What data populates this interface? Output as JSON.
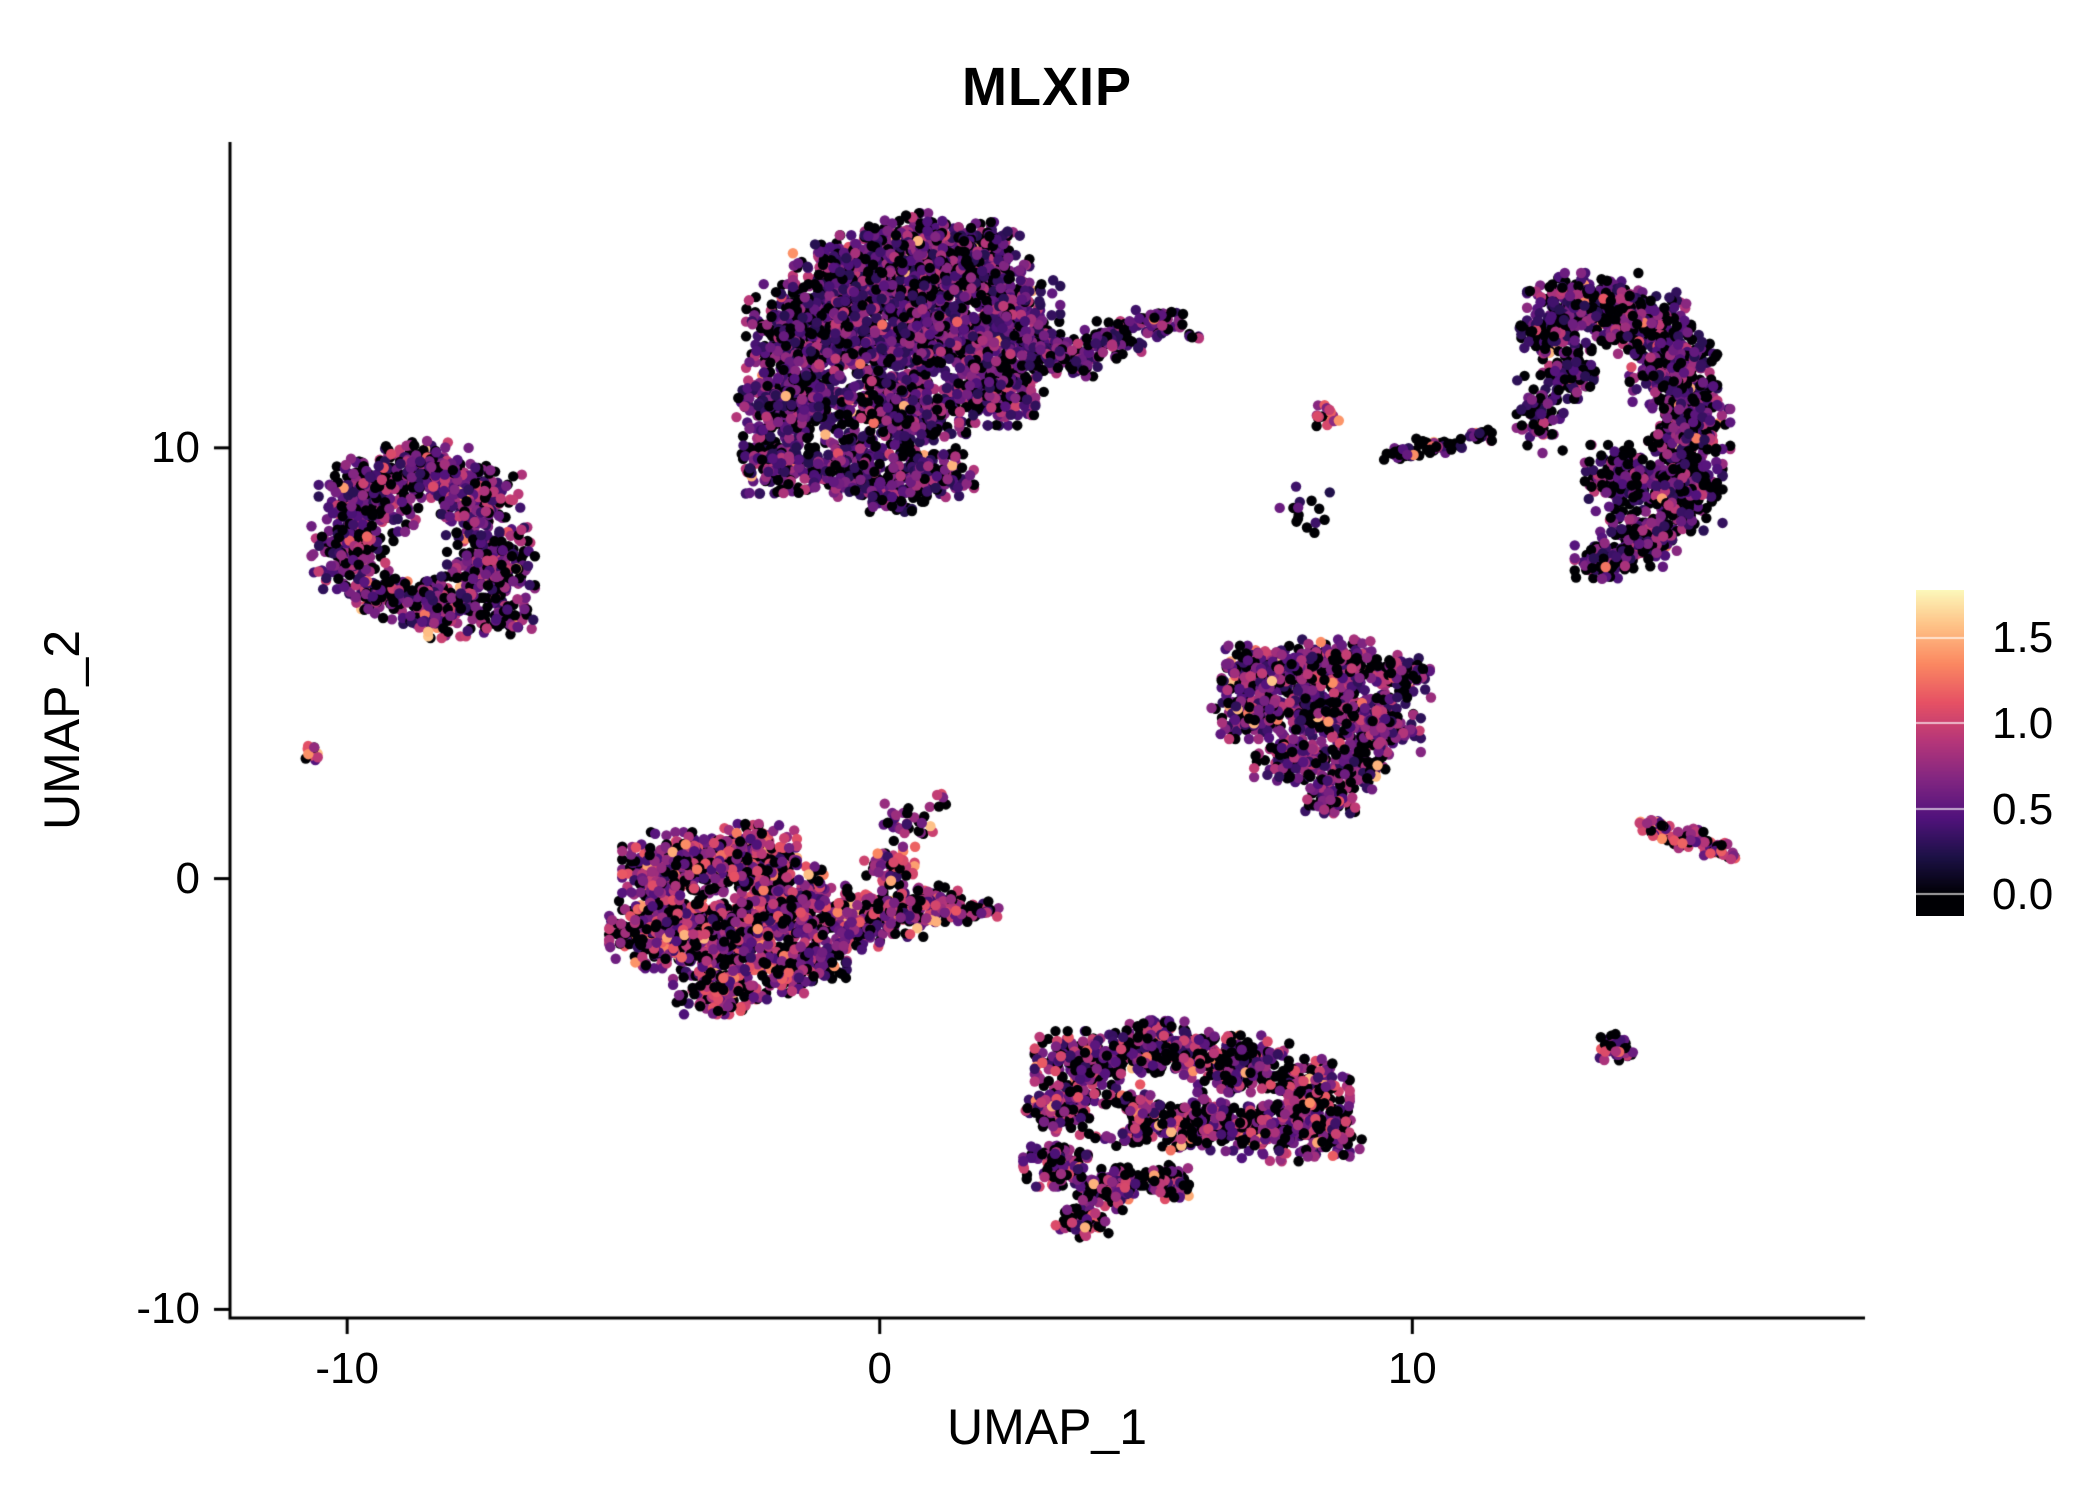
{
  "title": "MLXIP",
  "chart_data": {
    "type": "scatter",
    "title": "MLXIP",
    "xlabel": "UMAP_1",
    "ylabel": "UMAP_2",
    "grid": false,
    "background": "#ffffff",
    "x_axis": {
      "min": -12.2,
      "max": 18.5,
      "ticks": [
        -10,
        0,
        10
      ]
    },
    "y_axis": {
      "min": -10.2,
      "max": 17.1,
      "ticks": [
        -10,
        0,
        10
      ]
    },
    "legend": {
      "position": "right",
      "ticks": [
        1.5,
        1.0,
        0.5,
        0.0
      ],
      "range": [
        -0.12,
        1.78
      ],
      "colormap": "magma",
      "colormap_domain": [
        0,
        1.8
      ],
      "colors": [
        "#000004",
        "#1d1147",
        "#51127c",
        "#822681",
        "#b63679",
        "#e65164",
        "#fb8861",
        "#fec287",
        "#fcfdbf"
      ]
    },
    "point_radius_px": 5.2,
    "seed": 42,
    "clusters": [
      {
        "name": "left-ring",
        "p0": 0.33,
        "vmax": 1.0,
        "p_hi": 0.04,
        "pow": 1.25,
        "holes": [
          [
            -8.75,
            7.35,
            0.5,
            0.45
          ]
        ],
        "blobs": [
          [
            -9.6,
            8.9,
            0.85,
            0.8,
            220
          ],
          [
            -8.6,
            9.5,
            0.8,
            0.6,
            180
          ],
          [
            -7.6,
            8.8,
            0.8,
            0.75,
            200
          ],
          [
            -9.9,
            7.6,
            0.7,
            0.8,
            190
          ],
          [
            -7.3,
            7.4,
            0.75,
            0.8,
            190
          ],
          [
            -8.2,
            6.3,
            0.9,
            0.65,
            190
          ],
          [
            -9.3,
            6.6,
            0.6,
            0.5,
            100
          ],
          [
            -7.0,
            6.1,
            0.45,
            0.4,
            60
          ]
        ]
      },
      {
        "name": "left-tiny",
        "p0": 0.25,
        "vmax": 1.15,
        "p_hi": 0.12,
        "pow": 1.1,
        "blobs": [
          [
            -10.65,
            2.95,
            0.18,
            0.22,
            13
          ]
        ]
      },
      {
        "name": "top-large",
        "p0": 0.3,
        "vmax": 0.95,
        "p_hi": 0.015,
        "pow": 1.5,
        "blobs": [
          [
            0.6,
            14.9,
            0.8,
            0.5,
            140
          ],
          [
            1.9,
            14.8,
            0.6,
            0.4,
            80
          ],
          [
            -0.2,
            14.0,
            1.3,
            0.85,
            520
          ],
          [
            1.6,
            14.1,
            1.1,
            0.75,
            420
          ],
          [
            -1.3,
            12.7,
            1.1,
            1.0,
            480
          ],
          [
            0.6,
            12.6,
            1.3,
            1.1,
            560
          ],
          [
            2.4,
            12.9,
            0.9,
            0.9,
            330
          ],
          [
            -1.7,
            11.0,
            0.9,
            0.9,
            330
          ],
          [
            0.3,
            10.8,
            1.2,
            0.9,
            420
          ],
          [
            2.2,
            11.4,
            0.8,
            0.8,
            260
          ],
          [
            -2.0,
            9.6,
            0.6,
            0.6,
            140
          ],
          [
            -0.6,
            9.5,
            0.9,
            0.6,
            200
          ],
          [
            1.0,
            9.3,
            0.7,
            0.5,
            130
          ],
          [
            0.2,
            8.9,
            0.5,
            0.35,
            60
          ],
          [
            3.1,
            12.2,
            0.5,
            0.5,
            90
          ],
          [
            3.7,
            12.1,
            0.45,
            0.4,
            60
          ],
          [
            4.4,
            12.5,
            0.5,
            0.4,
            70
          ],
          [
            5.2,
            12.9,
            0.45,
            0.3,
            55
          ],
          [
            5.9,
            12.6,
            0.15,
            0.12,
            6
          ]
        ]
      },
      {
        "name": "mid-tiny-a",
        "p0": 0.25,
        "vmax": 1.35,
        "p_hi": 0.15,
        "pow": 1.0,
        "blobs": [
          [
            8.4,
            10.75,
            0.28,
            0.22,
            18
          ]
        ]
      },
      {
        "name": "mid-streak",
        "p0": 0.6,
        "vmax": 0.9,
        "p_hi": 0.05,
        "pow": 1.3,
        "blobs": [
          [
            9.8,
            9.85,
            0.3,
            0.16,
            22
          ],
          [
            10.5,
            10.05,
            0.45,
            0.15,
            36
          ],
          [
            11.3,
            10.3,
            0.35,
            0.13,
            22
          ]
        ]
      },
      {
        "name": "mid-sparse",
        "p0": 0.78,
        "vmax": 0.7,
        "p_hi": 0.0,
        "pow": 1.3,
        "blobs": [
          [
            7.9,
            8.55,
            0.5,
            0.5,
            15
          ]
        ]
      },
      {
        "name": "right-crescent",
        "p0": 0.4,
        "vmax": 0.95,
        "p_hi": 0.02,
        "pow": 1.4,
        "blobs": [
          [
            13.2,
            13.4,
            0.95,
            0.6,
            240
          ],
          [
            14.3,
            12.9,
            0.85,
            0.65,
            240
          ],
          [
            12.5,
            12.7,
            0.5,
            0.5,
            110
          ],
          [
            14.9,
            11.8,
            0.75,
            0.8,
            260
          ],
          [
            15.2,
            10.5,
            0.7,
            0.9,
            280
          ],
          [
            15.0,
            9.0,
            0.75,
            0.85,
            260
          ],
          [
            14.3,
            7.9,
            0.7,
            0.6,
            180
          ],
          [
            13.6,
            7.4,
            0.5,
            0.4,
            90
          ],
          [
            13.9,
            9.3,
            0.6,
            0.7,
            150
          ],
          [
            12.4,
            10.8,
            0.4,
            0.9,
            70
          ],
          [
            13.0,
            11.8,
            0.5,
            0.6,
            90
          ]
        ]
      },
      {
        "name": "mid-right",
        "p0": 0.33,
        "vmax": 1.0,
        "p_hi": 0.04,
        "pow": 1.25,
        "blobs": [
          [
            7.3,
            4.8,
            0.8,
            0.55,
            200
          ],
          [
            8.6,
            5.0,
            0.9,
            0.5,
            210
          ],
          [
            9.8,
            4.7,
            0.5,
            0.45,
            90
          ],
          [
            7.0,
            3.9,
            0.7,
            0.6,
            160
          ],
          [
            8.3,
            3.9,
            0.9,
            0.7,
            260
          ],
          [
            9.5,
            3.6,
            0.6,
            0.6,
            130
          ],
          [
            7.8,
            2.8,
            0.7,
            0.55,
            150
          ],
          [
            8.9,
            2.6,
            0.6,
            0.5,
            110
          ],
          [
            8.5,
            1.9,
            0.5,
            0.35,
            70
          ]
        ]
      },
      {
        "name": "center-left",
        "p0": 0.3,
        "vmax": 1.15,
        "p_hi": 0.06,
        "pow": 1.0,
        "blobs": [
          [
            -3.9,
            0.2,
            0.85,
            0.8,
            300
          ],
          [
            -2.6,
            0.5,
            0.95,
            0.7,
            330
          ],
          [
            -4.2,
            -1.2,
            0.8,
            0.8,
            270
          ],
          [
            -2.9,
            -1.3,
            1.0,
            0.9,
            380
          ],
          [
            -1.6,
            -0.6,
            0.9,
            0.8,
            300
          ],
          [
            -1.5,
            -2.0,
            0.8,
            0.6,
            190
          ],
          [
            -3.0,
            -2.6,
            0.8,
            0.5,
            170
          ],
          [
            -0.5,
            -1.0,
            0.7,
            0.6,
            170
          ],
          [
            0.4,
            -0.8,
            0.6,
            0.5,
            110
          ],
          [
            1.2,
            -0.6,
            0.5,
            0.4,
            70
          ],
          [
            1.9,
            -0.8,
            0.3,
            0.25,
            25
          ],
          [
            0.2,
            0.3,
            0.5,
            0.4,
            60
          ],
          [
            0.5,
            1.3,
            0.45,
            0.4,
            28
          ],
          [
            1.1,
            1.8,
            0.2,
            0.15,
            6
          ]
        ]
      },
      {
        "name": "bottom-center",
        "p0": 0.38,
        "vmax": 1.1,
        "p_hi": 0.05,
        "pow": 1.15,
        "holes": [
          [
            4.35,
            -5.6,
            0.4,
            0.35
          ]
        ],
        "blobs": [
          [
            3.9,
            -4.2,
            0.9,
            0.6,
            220
          ],
          [
            5.3,
            -3.9,
            0.9,
            0.55,
            220
          ],
          [
            6.7,
            -4.3,
            0.9,
            0.6,
            230
          ],
          [
            8.0,
            -4.9,
            0.75,
            0.65,
            210
          ],
          [
            8.5,
            -5.9,
            0.5,
            0.5,
            110
          ],
          [
            7.3,
            -5.9,
            0.8,
            0.6,
            190
          ],
          [
            6.0,
            -5.7,
            0.8,
            0.55,
            170
          ],
          [
            4.7,
            -5.6,
            0.7,
            0.55,
            140
          ],
          [
            3.4,
            -5.3,
            0.6,
            0.6,
            130
          ],
          [
            3.3,
            -6.6,
            0.55,
            0.5,
            110
          ],
          [
            4.3,
            -7.2,
            0.6,
            0.45,
            110
          ],
          [
            5.4,
            -7.0,
            0.5,
            0.4,
            80
          ],
          [
            3.8,
            -8.0,
            0.45,
            0.3,
            60
          ]
        ]
      },
      {
        "name": "right-streak",
        "p0": 0.18,
        "vmax": 1.25,
        "p_hi": 0.1,
        "pow": 0.9,
        "blobs": [
          [
            14.5,
            1.2,
            0.3,
            0.22,
            30
          ],
          [
            15.1,
            0.95,
            0.4,
            0.22,
            46
          ],
          [
            15.7,
            0.7,
            0.3,
            0.18,
            30
          ],
          [
            16.0,
            0.5,
            0.15,
            0.1,
            8
          ]
        ]
      },
      {
        "name": "right-small",
        "p0": 0.3,
        "vmax": 1.2,
        "p_hi": 0.06,
        "pow": 1.1,
        "blobs": [
          [
            13.85,
            -3.95,
            0.3,
            0.33,
            42
          ]
        ]
      }
    ]
  }
}
